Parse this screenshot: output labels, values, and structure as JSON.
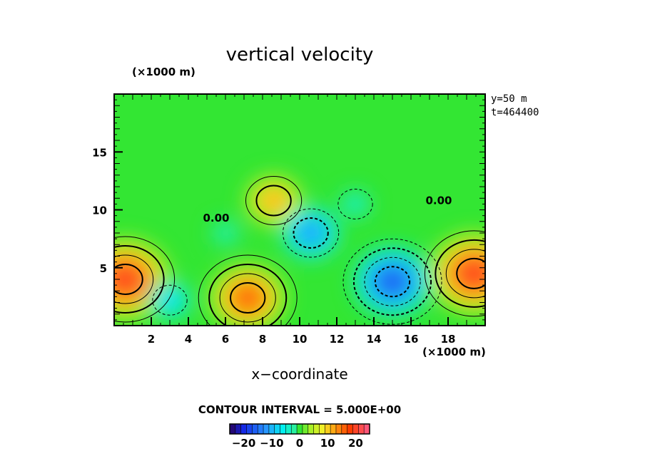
{
  "chart_data": {
    "type": "heatmap",
    "title": "vertical velocity",
    "xlabel": "x−coordinate",
    "x_unit": "(×1000 m)",
    "y_unit": "(×1000 m)",
    "xlim": [
      0,
      20
    ],
    "ylim": [
      0,
      20
    ],
    "x_ticks": [
      2,
      4,
      6,
      8,
      10,
      12,
      14,
      16,
      18
    ],
    "y_ticks": [
      5,
      10,
      15
    ],
    "annotations": [
      "y=50 m",
      "t=464400"
    ],
    "contour_label": "0.00",
    "contour_interval_text": "CONTOUR INTERVAL = 5.000E+00",
    "colorbar": {
      "min": -25,
      "max": 25,
      "ticks": [
        -20,
        -10,
        0,
        10,
        20
      ],
      "tick_labels": [
        "−20",
        "−10",
        "0",
        "10",
        "20"
      ]
    },
    "features": [
      {
        "x": 0.6,
        "y": 4.0,
        "value": 24
      },
      {
        "x": 19.4,
        "y": 4.5,
        "value": 24
      },
      {
        "x": 7.2,
        "y": 2.4,
        "value": 20
      },
      {
        "x": 8.6,
        "y": 10.8,
        "value": 14
      },
      {
        "x": 15.0,
        "y": 3.8,
        "value": -20
      },
      {
        "x": 10.6,
        "y": 8.0,
        "value": -14
      },
      {
        "x": 3.0,
        "y": 2.2,
        "value": -9
      },
      {
        "x": 13.0,
        "y": 10.5,
        "value": -5
      },
      {
        "x": 6.0,
        "y": 8.0,
        "value": -4
      }
    ]
  }
}
